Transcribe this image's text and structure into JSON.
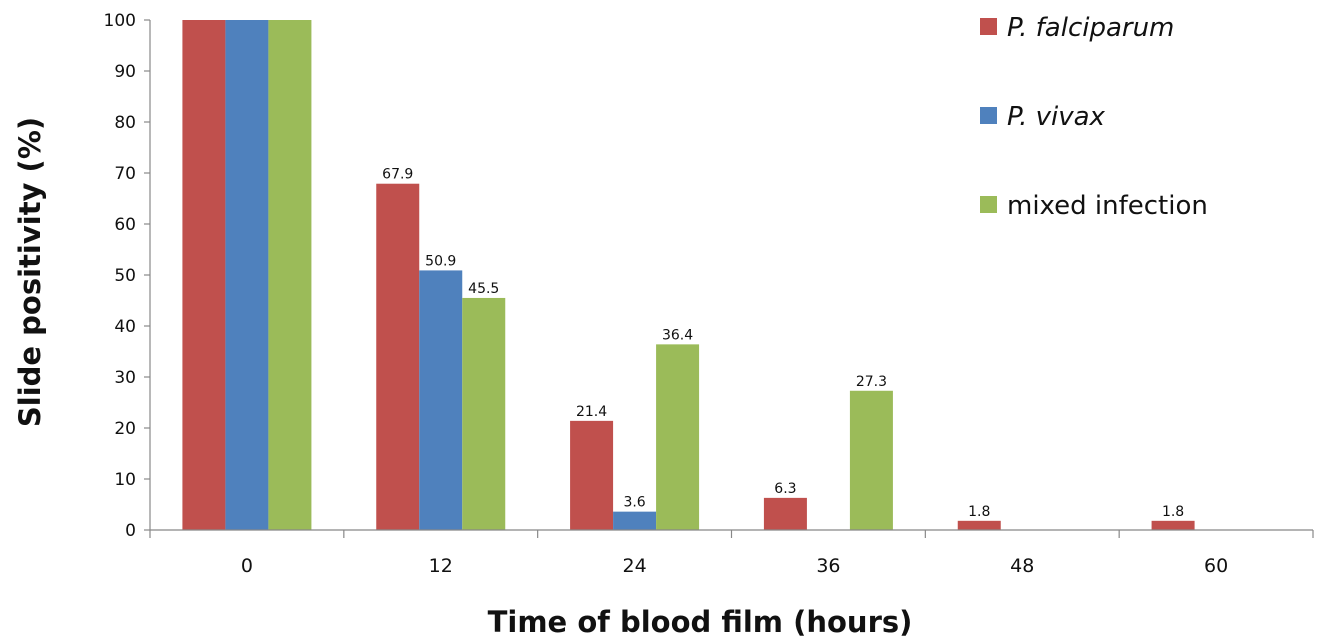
{
  "chart_data": {
    "type": "bar",
    "categories": [
      "0",
      "12",
      "24",
      "36",
      "48",
      "60"
    ],
    "series": [
      {
        "name": "P. falciparum",
        "color": "#c0504d",
        "italic": true,
        "values": [
          100,
          67.9,
          21.4,
          6.3,
          1.8,
          1.8
        ],
        "labels": [
          "",
          "67.9",
          "21.4",
          "6.3",
          "1.8",
          "1.8"
        ]
      },
      {
        "name": "P. vivax",
        "color": "#4f81bd",
        "italic": true,
        "values": [
          100,
          50.9,
          3.6,
          0,
          0,
          0
        ],
        "labels": [
          "",
          "50.9",
          "3.6",
          "",
          "",
          ""
        ]
      },
      {
        "name": "mixed infection",
        "color": "#9bbb59",
        "italic": false,
        "values": [
          100,
          45.5,
          36.4,
          27.3,
          0,
          0
        ],
        "labels": [
          "",
          "45.5",
          "36.4",
          "27.3",
          "",
          ""
        ]
      }
    ],
    "xlabel": "Time of blood film (hours)",
    "ylabel": "Slide positivity (%)",
    "ylim": [
      0,
      100
    ],
    "yticks": [
      "0",
      "10",
      "20",
      "30",
      "40",
      "50",
      "60",
      "70",
      "80",
      "90",
      "100"
    ],
    "grid": false,
    "legend_position": "top-right"
  }
}
